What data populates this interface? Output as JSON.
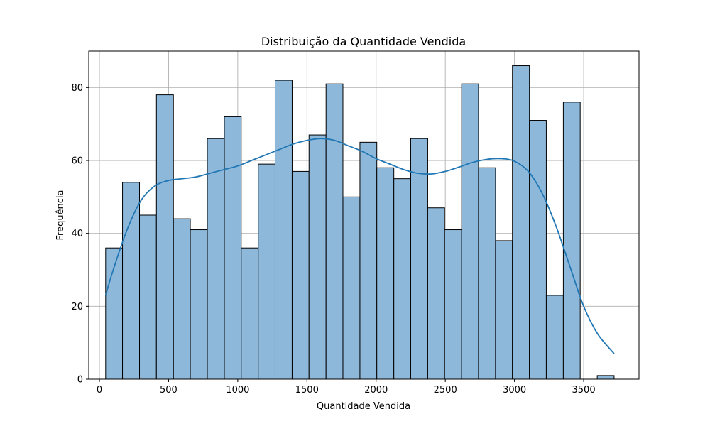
{
  "chart_data": {
    "type": "bar",
    "title": "Distribuição da Quantidade Vendida",
    "xlabel": "Quantidade Vendida",
    "ylabel": "Frequência",
    "xlim": [
      -77,
      3900
    ],
    "ylim": [
      0,
      90
    ],
    "xticks": [
      0,
      500,
      1000,
      1500,
      2000,
      2500,
      3000,
      3500
    ],
    "yticks": [
      0,
      20,
      40,
      60,
      80
    ],
    "grid": true,
    "bar_color": "#8db8da",
    "edge_color": "#000000",
    "kde_color": "#2077b4",
    "bins": [
      {
        "x0": 45,
        "x1": 167,
        "value": 36
      },
      {
        "x0": 167,
        "x1": 290,
        "value": 54
      },
      {
        "x0": 290,
        "x1": 412,
        "value": 45
      },
      {
        "x0": 412,
        "x1": 535,
        "value": 78
      },
      {
        "x0": 535,
        "x1": 657,
        "value": 44
      },
      {
        "x0": 657,
        "x1": 780,
        "value": 41
      },
      {
        "x0": 780,
        "x1": 903,
        "value": 66
      },
      {
        "x0": 903,
        "x1": 1025,
        "value": 72
      },
      {
        "x0": 1025,
        "x1": 1148,
        "value": 36
      },
      {
        "x0": 1148,
        "x1": 1270,
        "value": 59
      },
      {
        "x0": 1270,
        "x1": 1393,
        "value": 82
      },
      {
        "x0": 1393,
        "x1": 1515,
        "value": 57
      },
      {
        "x0": 1515,
        "x1": 1638,
        "value": 67
      },
      {
        "x0": 1638,
        "x1": 1760,
        "value": 81
      },
      {
        "x0": 1760,
        "x1": 1883,
        "value": 50
      },
      {
        "x0": 1883,
        "x1": 2005,
        "value": 65
      },
      {
        "x0": 2005,
        "x1": 2128,
        "value": 58
      },
      {
        "x0": 2128,
        "x1": 2250,
        "value": 55
      },
      {
        "x0": 2250,
        "x1": 2373,
        "value": 66
      },
      {
        "x0": 2373,
        "x1": 2495,
        "value": 47
      },
      {
        "x0": 2495,
        "x1": 2618,
        "value": 41
      },
      {
        "x0": 2618,
        "x1": 2740,
        "value": 81
      },
      {
        "x0": 2740,
        "x1": 2863,
        "value": 58
      },
      {
        "x0": 2863,
        "x1": 2985,
        "value": 38
      },
      {
        "x0": 2985,
        "x1": 3108,
        "value": 86
      },
      {
        "x0": 3108,
        "x1": 3230,
        "value": 71
      },
      {
        "x0": 3230,
        "x1": 3353,
        "value": 23
      },
      {
        "x0": 3353,
        "x1": 3475,
        "value": 76
      },
      {
        "x0": 3475,
        "x1": 3598,
        "value": 0
      },
      {
        "x0": 3598,
        "x1": 3720,
        "value": 1
      }
    ],
    "kde": [
      {
        "x": 45,
        "y": 23
      },
      {
        "x": 100,
        "y": 30
      },
      {
        "x": 200,
        "y": 41
      },
      {
        "x": 300,
        "y": 49
      },
      {
        "x": 400,
        "y": 53
      },
      {
        "x": 500,
        "y": 54.5
      },
      {
        "x": 600,
        "y": 55
      },
      {
        "x": 700,
        "y": 55.5
      },
      {
        "x": 800,
        "y": 56.5
      },
      {
        "x": 900,
        "y": 57.5
      },
      {
        "x": 1000,
        "y": 58.5
      },
      {
        "x": 1100,
        "y": 60
      },
      {
        "x": 1200,
        "y": 61.5
      },
      {
        "x": 1300,
        "y": 63
      },
      {
        "x": 1400,
        "y": 64.5
      },
      {
        "x": 1500,
        "y": 65.5
      },
      {
        "x": 1600,
        "y": 66
      },
      {
        "x": 1700,
        "y": 65.5
      },
      {
        "x": 1800,
        "y": 64
      },
      {
        "x": 1900,
        "y": 62.5
      },
      {
        "x": 2000,
        "y": 60.5
      },
      {
        "x": 2100,
        "y": 59
      },
      {
        "x": 2200,
        "y": 57.5
      },
      {
        "x": 2300,
        "y": 56.5
      },
      {
        "x": 2400,
        "y": 56.3
      },
      {
        "x": 2500,
        "y": 57
      },
      {
        "x": 2600,
        "y": 58.2
      },
      {
        "x": 2700,
        "y": 59.5
      },
      {
        "x": 2800,
        "y": 60.3
      },
      {
        "x": 2900,
        "y": 60.5
      },
      {
        "x": 3000,
        "y": 59.8
      },
      {
        "x": 3100,
        "y": 57
      },
      {
        "x": 3200,
        "y": 51
      },
      {
        "x": 3300,
        "y": 42
      },
      {
        "x": 3400,
        "y": 31
      },
      {
        "x": 3500,
        "y": 20
      },
      {
        "x": 3600,
        "y": 12.5
      },
      {
        "x": 3720,
        "y": 7
      }
    ]
  }
}
